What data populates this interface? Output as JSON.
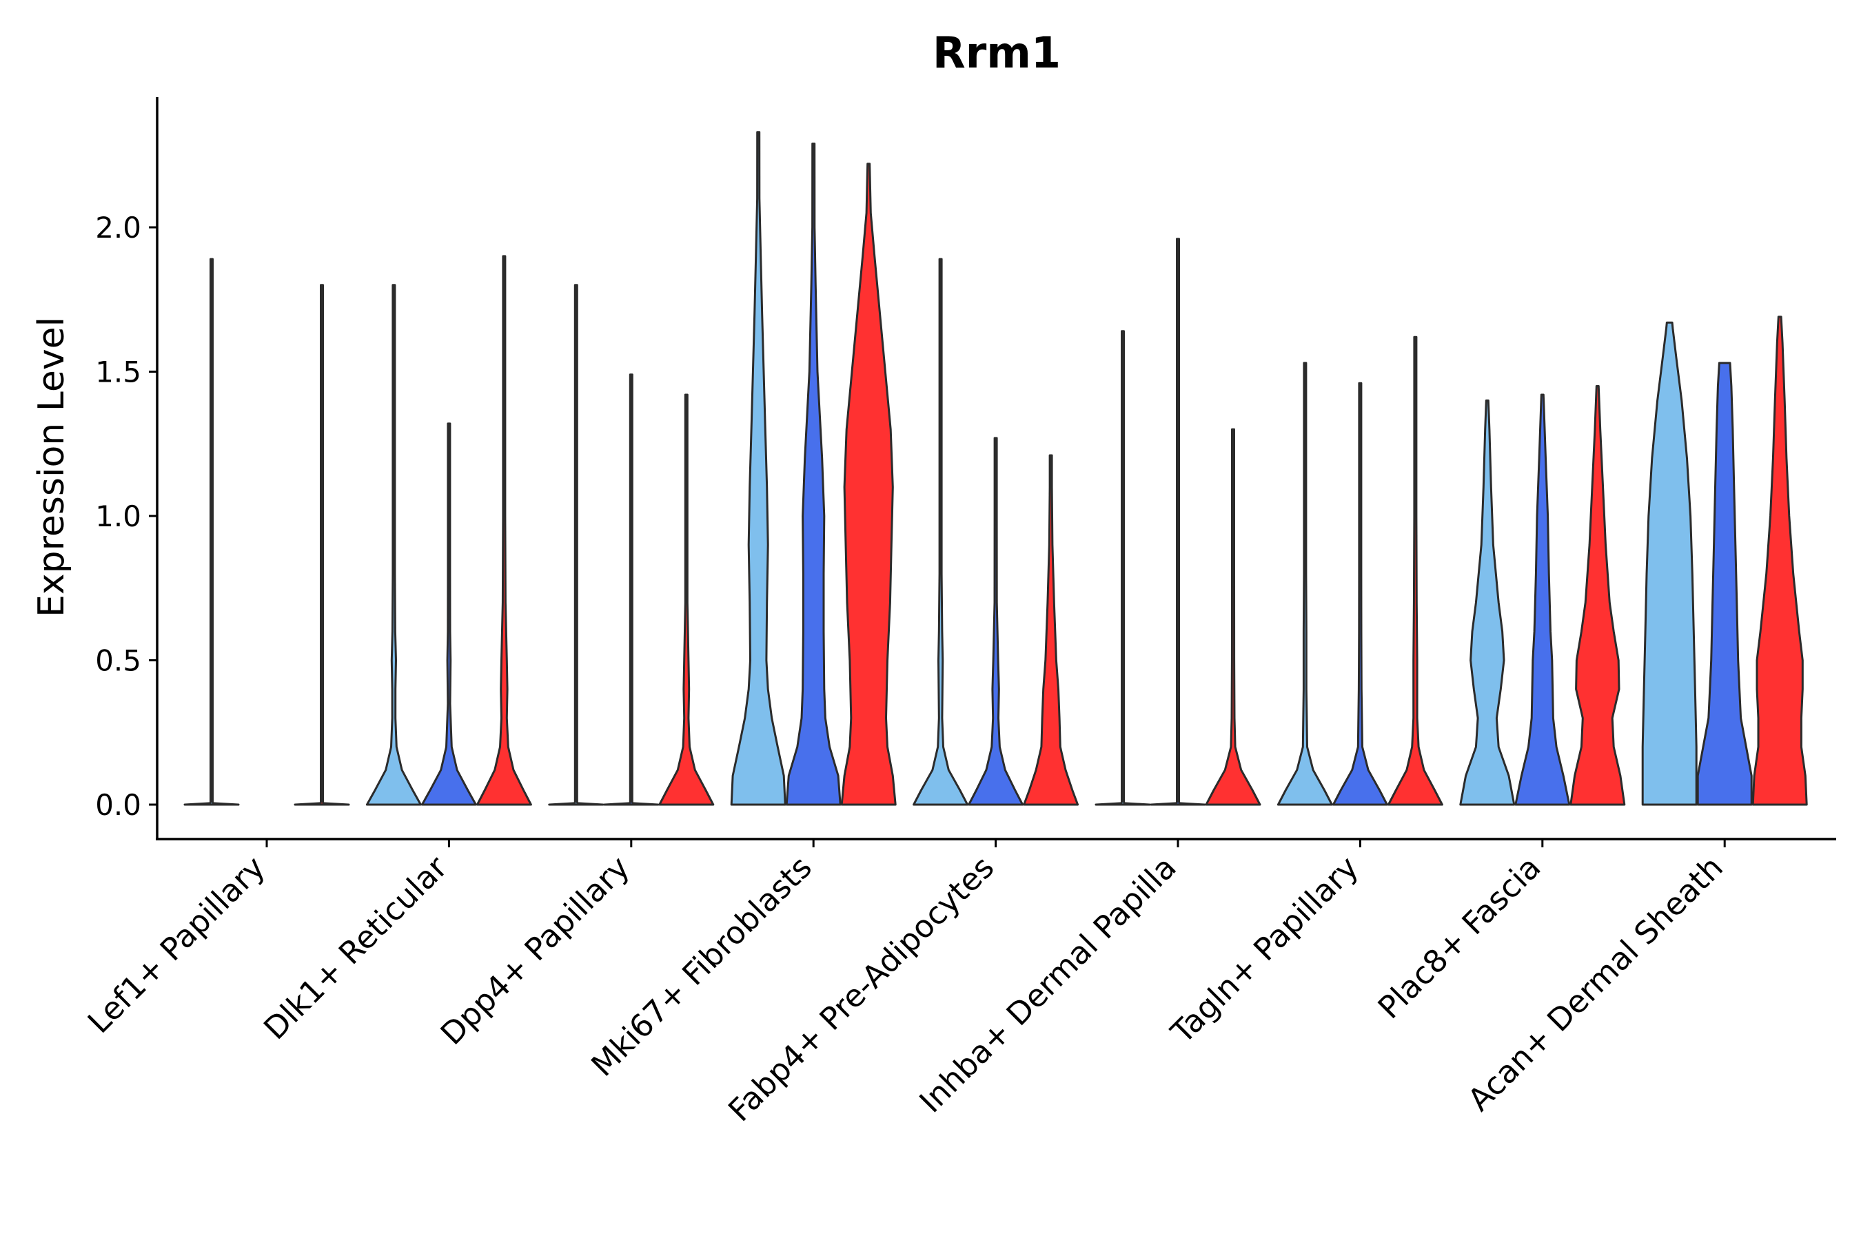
{
  "chart_data": {
    "type": "violin",
    "title": "Rrm1",
    "xlabel": "",
    "ylabel": "Expression Level",
    "ylim": [
      -0.12,
      2.45
    ],
    "yticks": [
      0.0,
      0.5,
      1.0,
      1.5,
      2.0
    ],
    "ytick_labels": [
      "0.0",
      "0.5",
      "1.0",
      "1.5",
      "2.0"
    ],
    "grid": false,
    "legend": "none",
    "group_colors": [
      "#7fbfed",
      "#4870ec",
      "#ff3131"
    ],
    "categories": [
      "Lef1+ Papillary",
      "Dlk1+ Reticular",
      "Dpp4+ Papillary",
      "Mki67+ Fibroblasts",
      "Fabp4+ Pre-Adipocytes",
      "Inhba+ Dermal Papilla",
      "Tagln+ Papillary",
      "Plac8+ Fascia",
      "Acan+ Dermal Sheath"
    ],
    "violins": [
      [
        {
          "max": 1.89,
          "profile": [
            [
              0,
              1
            ],
            [
              0.005,
              0.05
            ],
            [
              0.01,
              0.006
            ],
            [
              1.0,
              0.006
            ],
            [
              1.89,
              0.004
            ]
          ]
        },
        null,
        {
          "max": 1.8,
          "profile": [
            [
              0,
              1
            ],
            [
              0.005,
              0.05
            ],
            [
              0.01,
              0.006
            ],
            [
              1.0,
              0.006
            ],
            [
              1.8,
              0.004
            ]
          ]
        }
      ],
      [
        {
          "max": 1.8,
          "profile": [
            [
              0,
              1
            ],
            [
              0.05,
              0.7
            ],
            [
              0.12,
              0.3
            ],
            [
              0.2,
              0.1
            ],
            [
              0.3,
              0.06
            ],
            [
              0.4,
              0.06
            ],
            [
              0.5,
              0.08
            ],
            [
              0.6,
              0.05
            ],
            [
              0.8,
              0.02
            ],
            [
              1.2,
              0.008
            ],
            [
              1.8,
              0.004
            ]
          ]
        },
        {
          "max": 1.32,
          "profile": [
            [
              0,
              1
            ],
            [
              0.05,
              0.7
            ],
            [
              0.12,
              0.3
            ],
            [
              0.2,
              0.1
            ],
            [
              0.35,
              0.04
            ],
            [
              0.5,
              0.06
            ],
            [
              0.6,
              0.04
            ],
            [
              0.8,
              0.02
            ],
            [
              1.0,
              0.01
            ],
            [
              1.32,
              0.004
            ]
          ]
        },
        {
          "max": 1.9,
          "profile": [
            [
              0,
              1
            ],
            [
              0.05,
              0.72
            ],
            [
              0.12,
              0.35
            ],
            [
              0.2,
              0.15
            ],
            [
              0.3,
              0.1
            ],
            [
              0.4,
              0.12
            ],
            [
              0.5,
              0.1
            ],
            [
              0.7,
              0.05
            ],
            [
              1.0,
              0.02
            ],
            [
              1.4,
              0.008
            ],
            [
              1.9,
              0.004
            ]
          ]
        }
      ],
      [
        {
          "max": 1.8,
          "profile": [
            [
              0,
              1
            ],
            [
              0.005,
              0.05
            ],
            [
              0.01,
              0.006
            ],
            [
              1.0,
              0.006
            ],
            [
              1.8,
              0.004
            ]
          ]
        },
        {
          "max": 1.49,
          "profile": [
            [
              0,
              1
            ],
            [
              0.005,
              0.05
            ],
            [
              0.01,
              0.006
            ],
            [
              0.8,
              0.006
            ],
            [
              1.49,
              0.004
            ]
          ]
        },
        {
          "max": 1.42,
          "profile": [
            [
              0,
              1
            ],
            [
              0.05,
              0.72
            ],
            [
              0.12,
              0.32
            ],
            [
              0.2,
              0.12
            ],
            [
              0.3,
              0.08
            ],
            [
              0.4,
              0.1
            ],
            [
              0.5,
              0.08
            ],
            [
              0.7,
              0.03
            ],
            [
              1.0,
              0.015
            ],
            [
              1.42,
              0.004
            ]
          ]
        }
      ],
      [
        {
          "max": 2.33,
          "profile": [
            [
              0,
              1
            ],
            [
              0.1,
              0.95
            ],
            [
              0.2,
              0.72
            ],
            [
              0.3,
              0.5
            ],
            [
              0.4,
              0.36
            ],
            [
              0.5,
              0.3
            ],
            [
              0.7,
              0.32
            ],
            [
              0.9,
              0.36
            ],
            [
              1.1,
              0.32
            ],
            [
              1.3,
              0.26
            ],
            [
              1.5,
              0.2
            ],
            [
              1.7,
              0.14
            ],
            [
              1.9,
              0.09
            ],
            [
              2.1,
              0.04
            ],
            [
              2.33,
              0.004
            ]
          ]
        },
        {
          "max": 2.29,
          "profile": [
            [
              0,
              1
            ],
            [
              0.1,
              0.92
            ],
            [
              0.2,
              0.6
            ],
            [
              0.3,
              0.44
            ],
            [
              0.4,
              0.4
            ],
            [
              0.6,
              0.38
            ],
            [
              0.8,
              0.38
            ],
            [
              1.0,
              0.4
            ],
            [
              1.2,
              0.32
            ],
            [
              1.5,
              0.15
            ],
            [
              1.8,
              0.08
            ],
            [
              2.0,
              0.04
            ],
            [
              2.29,
              0.004
            ]
          ]
        },
        {
          "max": 2.22,
          "profile": [
            [
              0,
              1
            ],
            [
              0.1,
              0.9
            ],
            [
              0.2,
              0.7
            ],
            [
              0.3,
              0.65
            ],
            [
              0.5,
              0.7
            ],
            [
              0.7,
              0.8
            ],
            [
              0.9,
              0.85
            ],
            [
              1.1,
              0.9
            ],
            [
              1.3,
              0.82
            ],
            [
              1.5,
              0.62
            ],
            [
              1.7,
              0.42
            ],
            [
              1.9,
              0.22
            ],
            [
              2.05,
              0.08
            ],
            [
              2.22,
              0.004
            ]
          ]
        }
      ],
      [
        {
          "max": 1.89,
          "profile": [
            [
              0,
              1
            ],
            [
              0.05,
              0.72
            ],
            [
              0.12,
              0.3
            ],
            [
              0.2,
              0.1
            ],
            [
              0.3,
              0.06
            ],
            [
              0.4,
              0.07
            ],
            [
              0.5,
              0.08
            ],
            [
              0.6,
              0.06
            ],
            [
              0.8,
              0.03
            ],
            [
              1.2,
              0.01
            ],
            [
              1.89,
              0.004
            ]
          ]
        },
        {
          "max": 1.27,
          "profile": [
            [
              0,
              1
            ],
            [
              0.05,
              0.72
            ],
            [
              0.12,
              0.35
            ],
            [
              0.2,
              0.15
            ],
            [
              0.3,
              0.1
            ],
            [
              0.4,
              0.12
            ],
            [
              0.5,
              0.09
            ],
            [
              0.7,
              0.04
            ],
            [
              1.0,
              0.01
            ],
            [
              1.27,
              0.004
            ]
          ]
        },
        {
          "max": 1.21,
          "profile": [
            [
              0,
              1
            ],
            [
              0.05,
              0.8
            ],
            [
              0.12,
              0.55
            ],
            [
              0.2,
              0.35
            ],
            [
              0.3,
              0.32
            ],
            [
              0.4,
              0.28
            ],
            [
              0.5,
              0.2
            ],
            [
              0.7,
              0.12
            ],
            [
              0.9,
              0.06
            ],
            [
              1.1,
              0.03
            ],
            [
              1.21,
              0.02
            ]
          ]
        }
      ],
      [
        {
          "max": 1.64,
          "profile": [
            [
              0,
              1
            ],
            [
              0.005,
              0.05
            ],
            [
              0.01,
              0.006
            ],
            [
              0.8,
              0.006
            ],
            [
              1.64,
              0.004
            ]
          ]
        },
        {
          "max": 1.96,
          "profile": [
            [
              0,
              1
            ],
            [
              0.005,
              0.05
            ],
            [
              0.01,
              0.006
            ],
            [
              1.0,
              0.006
            ],
            [
              1.96,
              0.004
            ]
          ]
        },
        {
          "max": 1.3,
          "profile": [
            [
              0,
              1
            ],
            [
              0.05,
              0.72
            ],
            [
              0.12,
              0.3
            ],
            [
              0.2,
              0.08
            ],
            [
              0.3,
              0.05
            ],
            [
              0.5,
              0.04
            ],
            [
              0.8,
              0.03
            ],
            [
              1.0,
              0.015
            ],
            [
              1.3,
              0.004
            ]
          ]
        }
      ],
      [
        {
          "max": 1.53,
          "profile": [
            [
              0,
              1
            ],
            [
              0.05,
              0.72
            ],
            [
              0.12,
              0.3
            ],
            [
              0.2,
              0.08
            ],
            [
              0.4,
              0.05
            ],
            [
              0.6,
              0.05
            ],
            [
              0.8,
              0.03
            ],
            [
              1.1,
              0.01
            ],
            [
              1.53,
              0.004
            ]
          ]
        },
        {
          "max": 1.46,
          "profile": [
            [
              0,
              1
            ],
            [
              0.05,
              0.72
            ],
            [
              0.12,
              0.3
            ],
            [
              0.2,
              0.08
            ],
            [
              0.4,
              0.05
            ],
            [
              0.6,
              0.04
            ],
            [
              0.8,
              0.03
            ],
            [
              1.1,
              0.01
            ],
            [
              1.46,
              0.004
            ]
          ]
        },
        {
          "max": 1.62,
          "profile": [
            [
              0,
              1
            ],
            [
              0.05,
              0.72
            ],
            [
              0.12,
              0.32
            ],
            [
              0.2,
              0.12
            ],
            [
              0.3,
              0.07
            ],
            [
              0.5,
              0.07
            ],
            [
              0.7,
              0.05
            ],
            [
              1.0,
              0.02
            ],
            [
              1.62,
              0.004
            ]
          ]
        }
      ],
      [
        {
          "max": 1.4,
          "profile": [
            [
              0,
              1
            ],
            [
              0.1,
              0.8
            ],
            [
              0.2,
              0.42
            ],
            [
              0.3,
              0.35
            ],
            [
              0.4,
              0.5
            ],
            [
              0.5,
              0.62
            ],
            [
              0.6,
              0.56
            ],
            [
              0.7,
              0.42
            ],
            [
              0.9,
              0.22
            ],
            [
              1.1,
              0.14
            ],
            [
              1.3,
              0.08
            ],
            [
              1.4,
              0.004
            ]
          ]
        },
        {
          "max": 1.42,
          "profile": [
            [
              0,
              1
            ],
            [
              0.1,
              0.78
            ],
            [
              0.2,
              0.52
            ],
            [
              0.3,
              0.4
            ],
            [
              0.4,
              0.38
            ],
            [
              0.5,
              0.36
            ],
            [
              0.6,
              0.3
            ],
            [
              0.8,
              0.24
            ],
            [
              1.0,
              0.2
            ],
            [
              1.2,
              0.12
            ],
            [
              1.42,
              0.004
            ]
          ]
        },
        {
          "max": 1.45,
          "profile": [
            [
              0,
              1
            ],
            [
              0.1,
              0.85
            ],
            [
              0.2,
              0.6
            ],
            [
              0.3,
              0.55
            ],
            [
              0.4,
              0.8
            ],
            [
              0.5,
              0.78
            ],
            [
              0.6,
              0.6
            ],
            [
              0.7,
              0.45
            ],
            [
              0.9,
              0.3
            ],
            [
              1.1,
              0.2
            ],
            [
              1.3,
              0.1
            ],
            [
              1.45,
              0.004
            ]
          ]
        }
      ],
      [
        {
          "max": 1.67,
          "profile": [
            [
              0,
              1
            ],
            [
              0.2,
              1.0
            ],
            [
              0.4,
              0.95
            ],
            [
              0.6,
              0.9
            ],
            [
              0.8,
              0.85
            ],
            [
              1.0,
              0.78
            ],
            [
              1.2,
              0.65
            ],
            [
              1.4,
              0.45
            ],
            [
              1.55,
              0.25
            ],
            [
              1.65,
              0.12
            ],
            [
              1.67,
              0.1
            ]
          ]
        },
        {
          "max": 1.53,
          "profile": [
            [
              0,
              1
            ],
            [
              0.1,
              1.0
            ],
            [
              0.2,
              0.8
            ],
            [
              0.3,
              0.6
            ],
            [
              0.5,
              0.5
            ],
            [
              0.7,
              0.45
            ],
            [
              0.9,
              0.4
            ],
            [
              1.1,
              0.35
            ],
            [
              1.3,
              0.3
            ],
            [
              1.45,
              0.25
            ],
            [
              1.53,
              0.2
            ]
          ]
        },
        {
          "max": 1.69,
          "profile": [
            [
              0,
              1
            ],
            [
              0.1,
              0.95
            ],
            [
              0.2,
              0.8
            ],
            [
              0.3,
              0.8
            ],
            [
              0.4,
              0.85
            ],
            [
              0.5,
              0.85
            ],
            [
              0.6,
              0.72
            ],
            [
              0.8,
              0.5
            ],
            [
              1.0,
              0.35
            ],
            [
              1.2,
              0.25
            ],
            [
              1.4,
              0.18
            ],
            [
              1.6,
              0.1
            ],
            [
              1.69,
              0.05
            ]
          ]
        }
      ]
    ]
  }
}
